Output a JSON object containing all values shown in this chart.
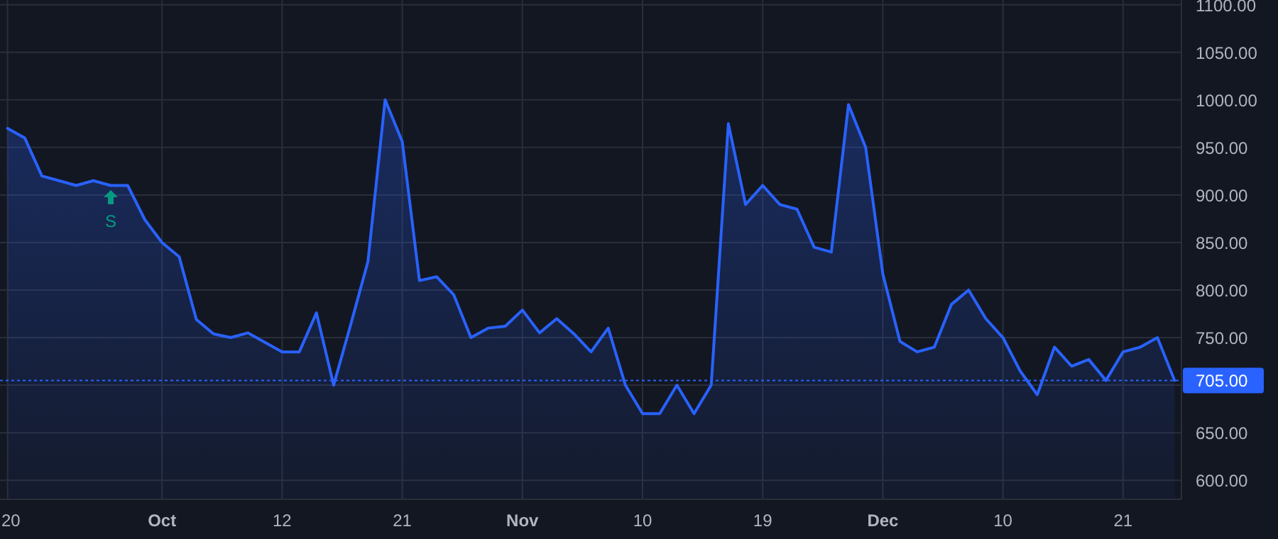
{
  "chart_data": {
    "type": "area",
    "categories": [
      "20",
      null,
      null,
      null,
      null,
      null,
      null,
      null,
      null,
      "Oct",
      null,
      null,
      null,
      null,
      null,
      null,
      "12",
      null,
      null,
      null,
      null,
      null,
      null,
      "21",
      null,
      null,
      null,
      null,
      null,
      null,
      "Nov",
      null,
      null,
      null,
      null,
      null,
      null,
      "10",
      null,
      null,
      null,
      null,
      null,
      null,
      "19",
      null,
      null,
      null,
      null,
      null,
      null,
      "Dec",
      null,
      null,
      null,
      null,
      null,
      null,
      "10",
      null,
      null,
      null,
      null,
      null,
      null,
      "21",
      null,
      null,
      null
    ],
    "series": [
      {
        "color": "#2962ff",
        "values": [
          970,
          960,
          920,
          915,
          910,
          915,
          910,
          910,
          874,
          850,
          835,
          769,
          754,
          750,
          755,
          745,
          735,
          735,
          776,
          700,
          764,
          830,
          1000,
          956,
          810,
          814,
          795,
          750,
          760,
          762,
          779,
          755,
          770,
          754,
          735,
          760,
          700,
          670,
          670,
          700,
          670,
          700,
          975,
          890,
          910,
          890,
          885,
          845,
          840,
          995,
          950,
          817,
          746,
          735,
          740,
          785,
          800,
          770,
          750,
          715,
          690,
          740,
          720,
          727,
          705,
          735,
          740,
          750,
          705
        ]
      }
    ],
    "ylim": [
      580,
      1105
    ],
    "yticks": [
      {
        "value": 600,
        "label": "600.00"
      },
      {
        "value": 650,
        "label": "650.00"
      },
      {
        "value": 700,
        "label": null
      },
      {
        "value": 750,
        "label": "750.00"
      },
      {
        "value": 800,
        "label": "800.00"
      },
      {
        "value": 850,
        "label": "850.00"
      },
      {
        "value": 900,
        "label": "900.00"
      },
      {
        "value": 950,
        "label": "950.00"
      },
      {
        "value": 1000,
        "label": "1000.00"
      },
      {
        "value": 1050,
        "label": "1050.00"
      },
      {
        "value": 1100,
        "label": "1100.00"
      }
    ],
    "grid": true,
    "ref_lines": [
      {
        "axis": "y",
        "value": 705,
        "label": "705.00",
        "color": "#2962ff",
        "line_style": "dotted"
      }
    ],
    "annotations": [
      "S"
    ]
  }
}
